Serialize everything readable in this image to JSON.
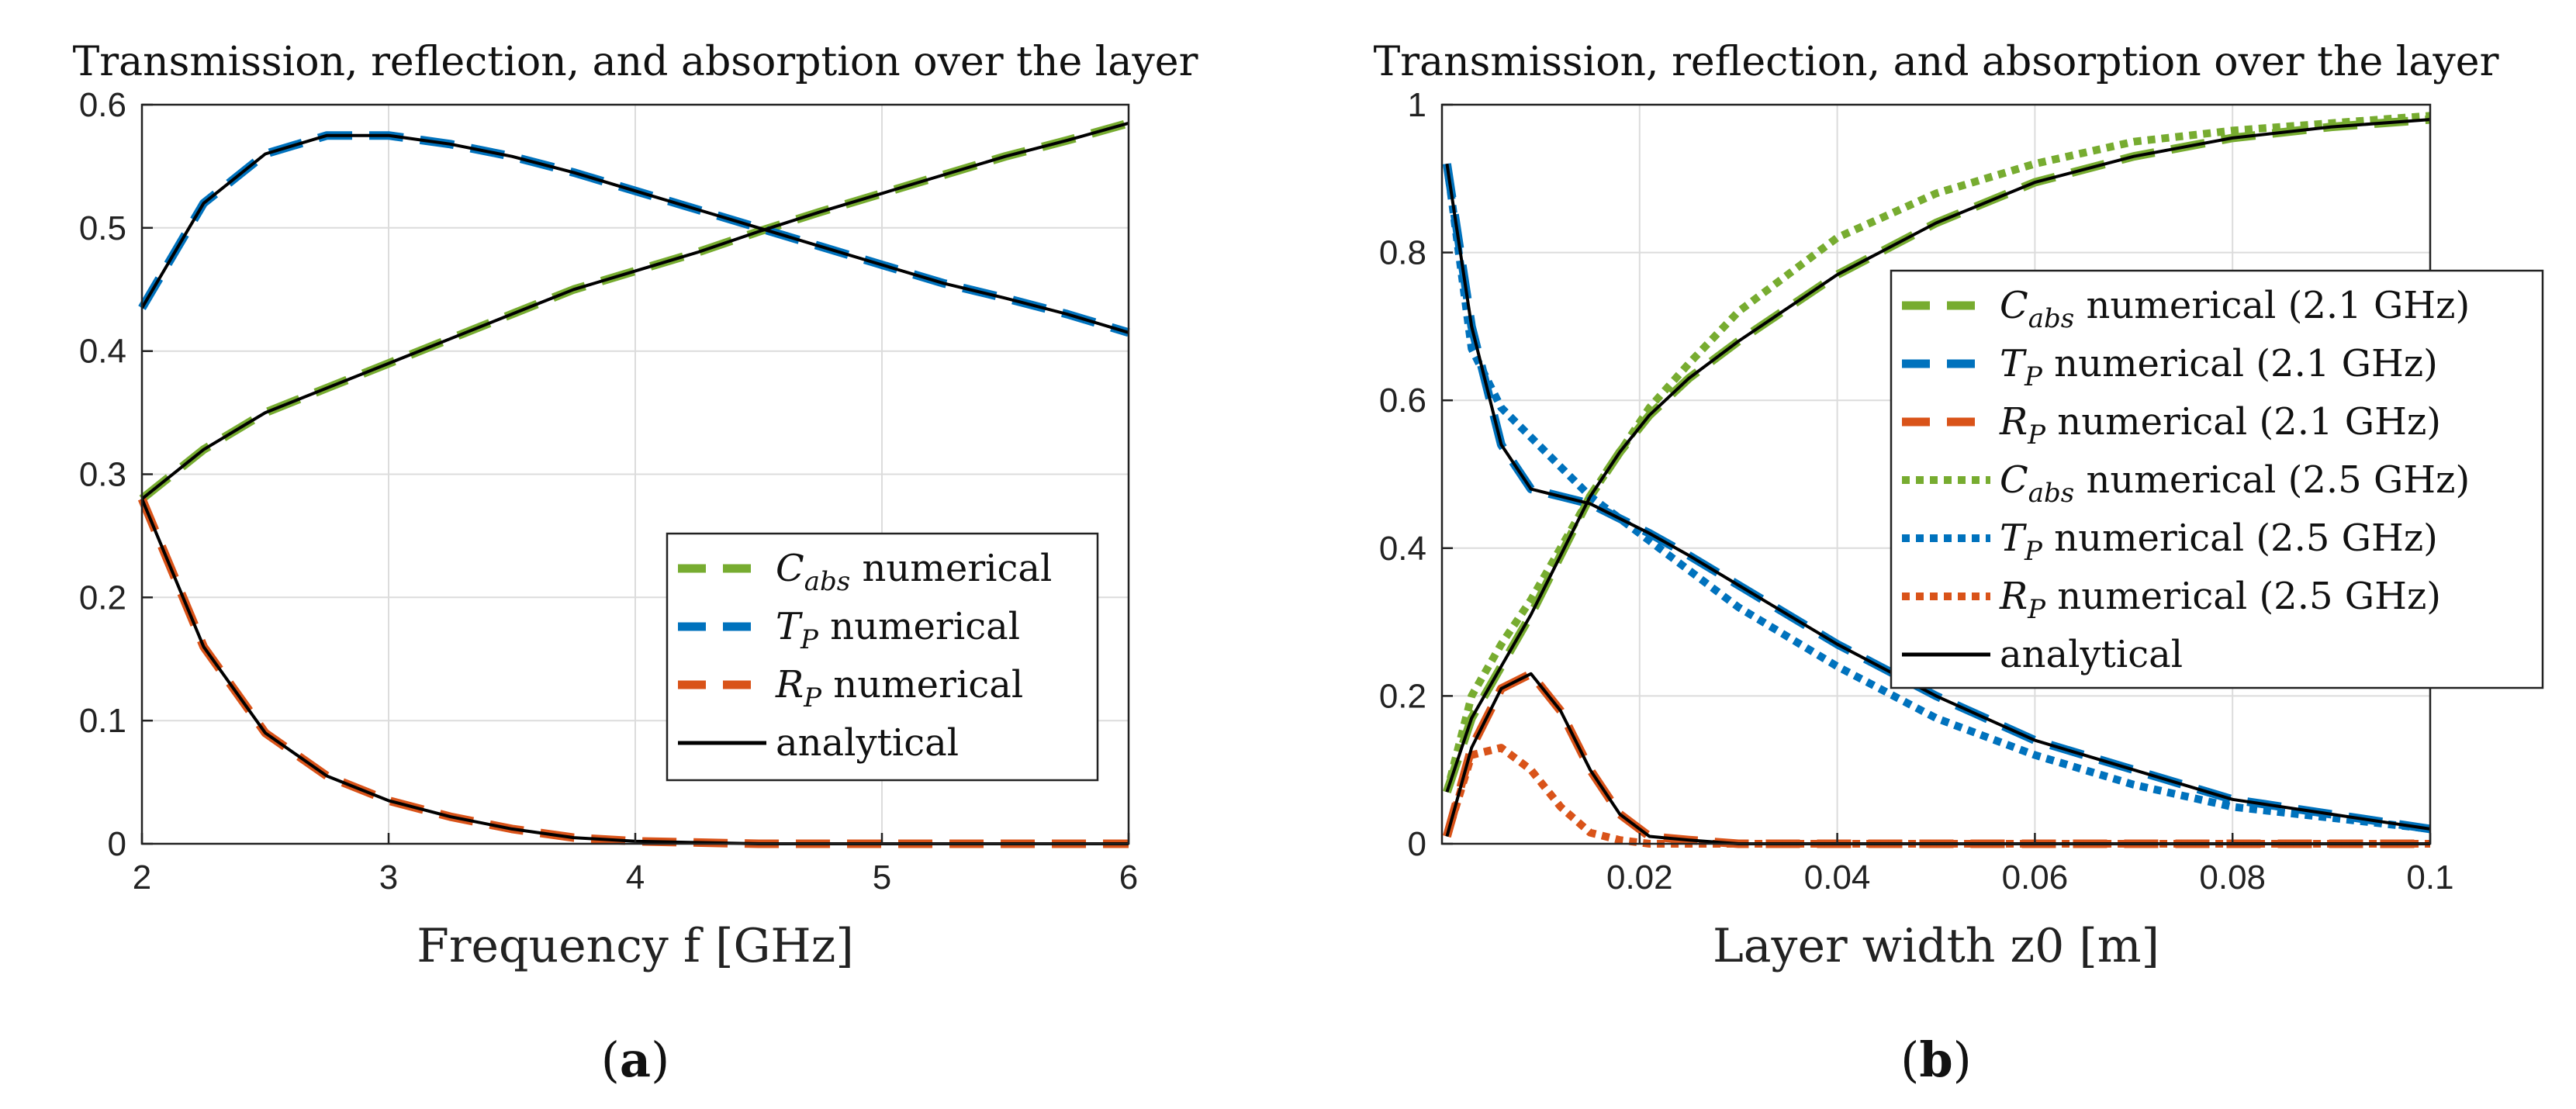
{
  "colors": {
    "green": "#77AC30",
    "blue": "#0072BD",
    "orange": "#D95319",
    "analytical": "#000000",
    "grid": "#dcdcdc",
    "axis": "#222222"
  },
  "chart_data": [
    {
      "type": "line",
      "title": "Transmission, reflection, and absorption over the layer",
      "xlabel": "Frequency f [GHz]",
      "ylabel": "",
      "xlim": [
        2,
        6
      ],
      "ylim": [
        0,
        0.6
      ],
      "xticks": [
        2,
        3,
        4,
        5,
        6
      ],
      "xtick_labels": [
        "2",
        "3",
        "4",
        "5",
        "6"
      ],
      "yticks": [
        0,
        0.1,
        0.2,
        0.3,
        0.4,
        0.5,
        0.6
      ],
      "ytick_labels": [
        "0",
        "0.1",
        "0.2",
        "0.3",
        "0.4",
        "0.5",
        "0.6"
      ],
      "grid": true,
      "legend_position": "bottom-right",
      "caption": [
        "(",
        "a",
        ")"
      ],
      "x": [
        2.0,
        2.25,
        2.5,
        2.75,
        3.0,
        3.25,
        3.5,
        3.75,
        4.0,
        4.25,
        4.5,
        4.75,
        5.0,
        5.25,
        5.5,
        5.75,
        6.0
      ],
      "series": [
        {
          "name": "C_abs numerical",
          "label": {
            "base": "C",
            "sub": "abs",
            "rest": " numerical"
          },
          "color": "green",
          "style": "dashed",
          "values": [
            0.28,
            0.32,
            0.35,
            0.37,
            0.39,
            0.41,
            0.43,
            0.45,
            0.465,
            0.48,
            0.497,
            0.513,
            0.528,
            0.543,
            0.558,
            0.571,
            0.585
          ]
        },
        {
          "name": "T_P numerical",
          "label": {
            "base": "T",
            "sub": "P",
            "rest": " numerical"
          },
          "color": "blue",
          "style": "dashed",
          "values": [
            0.435,
            0.52,
            0.56,
            0.575,
            0.575,
            0.568,
            0.558,
            0.545,
            0.53,
            0.515,
            0.5,
            0.485,
            0.47,
            0.455,
            0.443,
            0.43,
            0.415
          ]
        },
        {
          "name": "R_P numerical",
          "label": {
            "base": "R",
            "sub": "P",
            "rest": " numerical"
          },
          "color": "orange",
          "style": "dashed",
          "values": [
            0.28,
            0.16,
            0.09,
            0.055,
            0.035,
            0.022,
            0.012,
            0.005,
            0.002,
            0.001,
            0.0,
            0.0,
            0.0,
            0.0,
            0.0,
            0.0,
            0.0
          ]
        },
        {
          "name": "analytical",
          "label": {
            "base": "analytical",
            "sub": "",
            "rest": ""
          },
          "color": "analytical",
          "style": "solid",
          "overlay": true
        }
      ]
    },
    {
      "type": "line",
      "title": "Transmission, reflection, and absorption over the layer",
      "xlabel": "Layer width z0 [m]",
      "ylabel": "",
      "xlim": [
        0,
        0.1
      ],
      "ylim": [
        0,
        1
      ],
      "xticks": [
        0.02,
        0.04,
        0.06,
        0.08,
        0.1
      ],
      "xtick_labels": [
        "0.02",
        "0.04",
        "0.06",
        "0.08",
        "0.1"
      ],
      "yticks": [
        0,
        0.2,
        0.4,
        0.6,
        0.8,
        1
      ],
      "ytick_labels": [
        "0",
        "0.2",
        "0.4",
        "0.6",
        "0.8",
        "1"
      ],
      "grid": true,
      "legend_position": "center-right",
      "caption": [
        "(",
        "b",
        ")"
      ],
      "x": [
        0.0005,
        0.003,
        0.006,
        0.009,
        0.012,
        0.015,
        0.018,
        0.021,
        0.025,
        0.03,
        0.04,
        0.05,
        0.06,
        0.07,
        0.08,
        0.09,
        0.1
      ],
      "series": [
        {
          "name": "C_abs numerical (2.1 GHz)",
          "label": {
            "base": "C",
            "sub": "abs",
            "rest": " numerical (2.1 GHz)"
          },
          "color": "green",
          "style": "dashed",
          "values": [
            0.07,
            0.17,
            0.24,
            0.31,
            0.39,
            0.47,
            0.53,
            0.58,
            0.63,
            0.68,
            0.77,
            0.84,
            0.895,
            0.93,
            0.955,
            0.97,
            0.98
          ]
        },
        {
          "name": "T_P numerical (2.1 GHz)",
          "label": {
            "base": "T",
            "sub": "P",
            "rest": " numerical (2.1 GHz)"
          },
          "color": "blue",
          "style": "dashed",
          "values": [
            0.92,
            0.7,
            0.54,
            0.48,
            0.47,
            0.46,
            0.44,
            0.42,
            0.39,
            0.35,
            0.27,
            0.2,
            0.14,
            0.1,
            0.06,
            0.04,
            0.02
          ]
        },
        {
          "name": "R_P numerical (2.1 GHz)",
          "label": {
            "base": "R",
            "sub": "P",
            "rest": " numerical (2.1 GHz)"
          },
          "color": "orange",
          "style": "dashed",
          "values": [
            0.01,
            0.13,
            0.21,
            0.23,
            0.18,
            0.1,
            0.04,
            0.01,
            0.005,
            0.0,
            0.0,
            0.0,
            0.0,
            0.0,
            0.0,
            0.0,
            0.0
          ]
        },
        {
          "name": "C_abs numerical (2.5 GHz)",
          "label": {
            "base": "C",
            "sub": "abs",
            "rest": " numerical (2.5 GHz)"
          },
          "color": "green",
          "style": "dotted",
          "values": [
            0.07,
            0.2,
            0.27,
            0.33,
            0.4,
            0.47,
            0.53,
            0.59,
            0.65,
            0.72,
            0.82,
            0.88,
            0.92,
            0.95,
            0.965,
            0.975,
            0.985
          ]
        },
        {
          "name": "T_P numerical (2.5 GHz)",
          "label": {
            "base": "T",
            "sub": "P",
            "rest": " numerical (2.5 GHz)"
          },
          "color": "blue",
          "style": "dotted",
          "values": [
            0.92,
            0.67,
            0.59,
            0.55,
            0.51,
            0.47,
            0.44,
            0.41,
            0.37,
            0.32,
            0.24,
            0.17,
            0.12,
            0.08,
            0.05,
            0.035,
            0.02
          ]
        },
        {
          "name": "R_P numerical (2.5 GHz)",
          "label": {
            "base": "R",
            "sub": "P",
            "rest": " numerical (2.5 GHz)"
          },
          "color": "orange",
          "style": "dotted",
          "values": [
            0.01,
            0.12,
            0.13,
            0.1,
            0.05,
            0.015,
            0.005,
            0.0,
            0.0,
            0.0,
            0.0,
            0.0,
            0.0,
            0.0,
            0.0,
            0.0,
            0.0
          ]
        },
        {
          "name": "analytical",
          "label": {
            "base": "analytical",
            "sub": "",
            "rest": ""
          },
          "color": "analytical",
          "style": "solid",
          "overlay": true
        }
      ]
    }
  ]
}
